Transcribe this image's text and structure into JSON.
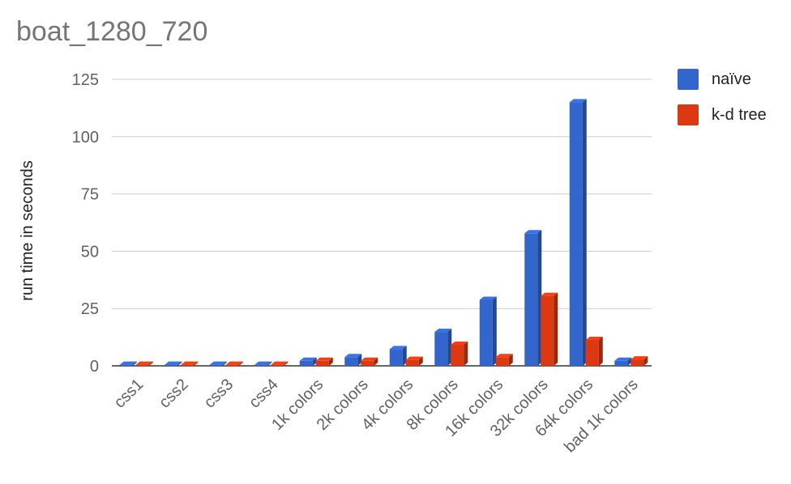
{
  "chart_data": {
    "type": "bar",
    "title": "boat_1280_720",
    "xlabel": "",
    "ylabel": "run time in seconds",
    "ylim": [
      0,
      125
    ],
    "yticks": [
      0,
      25,
      50,
      75,
      100,
      125
    ],
    "grid": true,
    "legend_position": "right",
    "categories": [
      "css1",
      "css2",
      "css3",
      "css4",
      "1k colors",
      "2k colors",
      "4k colors",
      "8k colors",
      "16k colors",
      "32k colors",
      "64k colors",
      "bad 1k colors"
    ],
    "series": [
      {
        "name": "naïve",
        "color": "#3366cc",
        "values": [
          0.5,
          0.5,
          0.5,
          0.5,
          2.2,
          3.8,
          7.3,
          14.8,
          28.8,
          57.8,
          115,
          2.2
        ]
      },
      {
        "name": "k-d tree",
        "color": "#dc3912",
        "values": [
          0.5,
          0.5,
          0.5,
          0.5,
          2.2,
          2.2,
          2.6,
          9.2,
          3.8,
          30.5,
          11.3,
          2.8
        ]
      }
    ]
  }
}
